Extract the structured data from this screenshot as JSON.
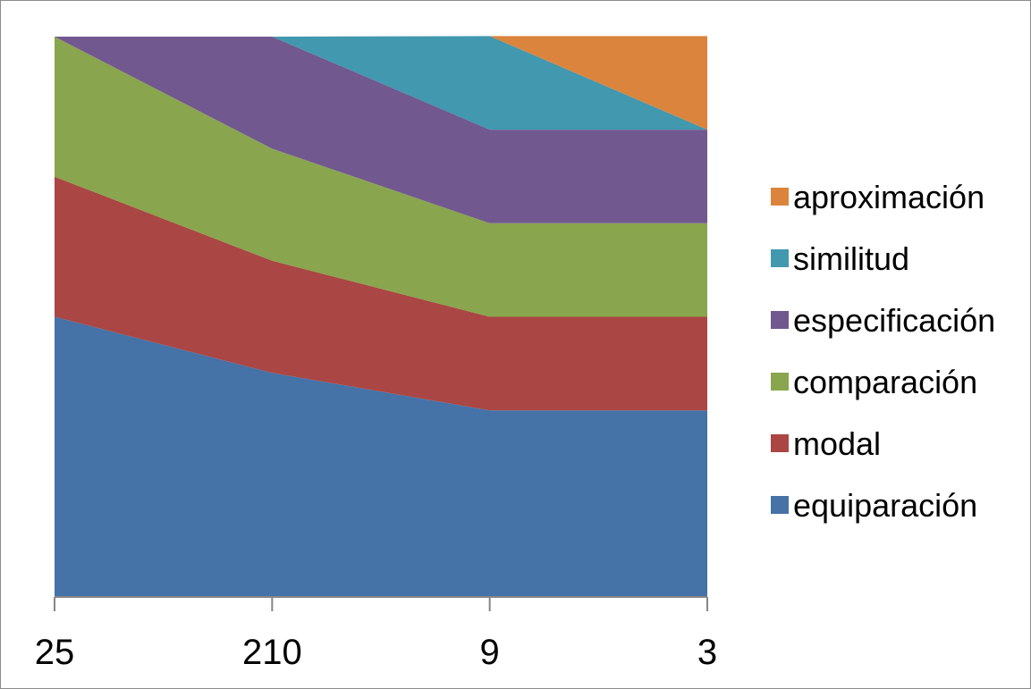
{
  "chart_data": {
    "type": "area",
    "stacking": "percent",
    "categories": [
      "25",
      "210",
      "9",
      "3"
    ],
    "ylim": [
      0,
      1
    ],
    "grid": false,
    "legend_position": "right",
    "series": [
      {
        "name": "equiparación",
        "color": "#4572A7",
        "values": [
          0.5,
          0.4,
          0.333,
          0.333
        ]
      },
      {
        "name": "modal",
        "color": "#AA4643",
        "values": [
          0.25,
          0.2,
          0.167,
          0.167
        ]
      },
      {
        "name": "comparación",
        "color": "#89A54E",
        "values": [
          0.25,
          0.2,
          0.167,
          0.167
        ]
      },
      {
        "name": "especificación",
        "color": "#71588F",
        "values": [
          0.0,
          0.2,
          0.167,
          0.167
        ]
      },
      {
        "name": "similitud",
        "color": "#4198AF",
        "values": [
          0.0,
          0.0,
          0.167,
          0.0
        ]
      },
      {
        "name": "aproximación",
        "color": "#DB843D",
        "values": [
          0.0,
          0.0,
          0.0,
          0.167
        ]
      }
    ]
  }
}
